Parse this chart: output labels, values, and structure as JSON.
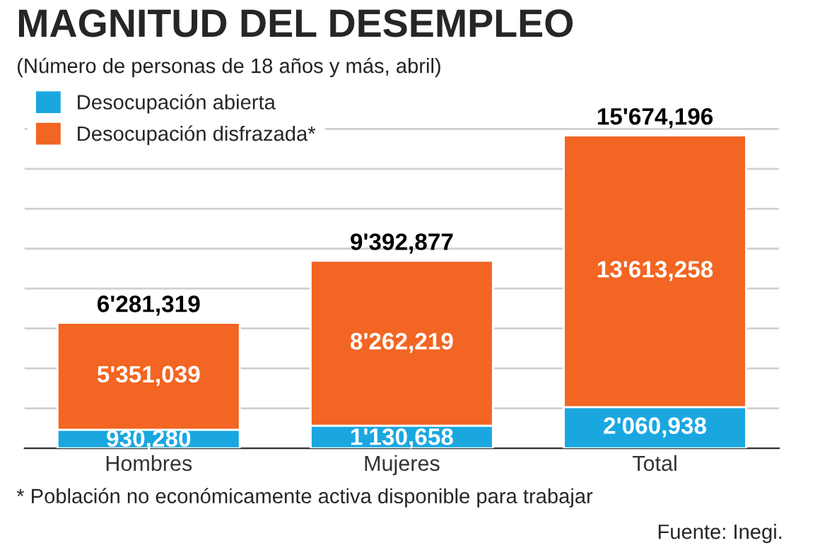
{
  "chart_data": {
    "type": "bar",
    "stacked": true,
    "title": "MAGNITUD DEL DESEMPLEO",
    "subtitle": "(Número de personas de 18 años y más, abril)",
    "categories": [
      "Hombres",
      "Mujeres",
      "Total"
    ],
    "series": [
      {
        "name": "Desocupación abierta",
        "color": "#1aa7e0",
        "values": [
          930280,
          1130658,
          2060938
        ],
        "value_labels": [
          "930,280",
          "1'130,658",
          "2'060,938"
        ]
      },
      {
        "name": "Desocupación disfrazada*",
        "color": "#f26522",
        "values": [
          5351039,
          8262219,
          13613258
        ],
        "value_labels": [
          "5'351,039",
          "8'262,219",
          "13'613,258"
        ]
      }
    ],
    "totals": [
      "6'281,319",
      "9'392,877",
      "15'674,196"
    ],
    "grid": "y",
    "legend": "top left",
    "tick_labels": "x",
    "annotations": [
      "* Población no económicamente activa disponible para trabajar",
      "Fuente: Inegi."
    ]
  }
}
